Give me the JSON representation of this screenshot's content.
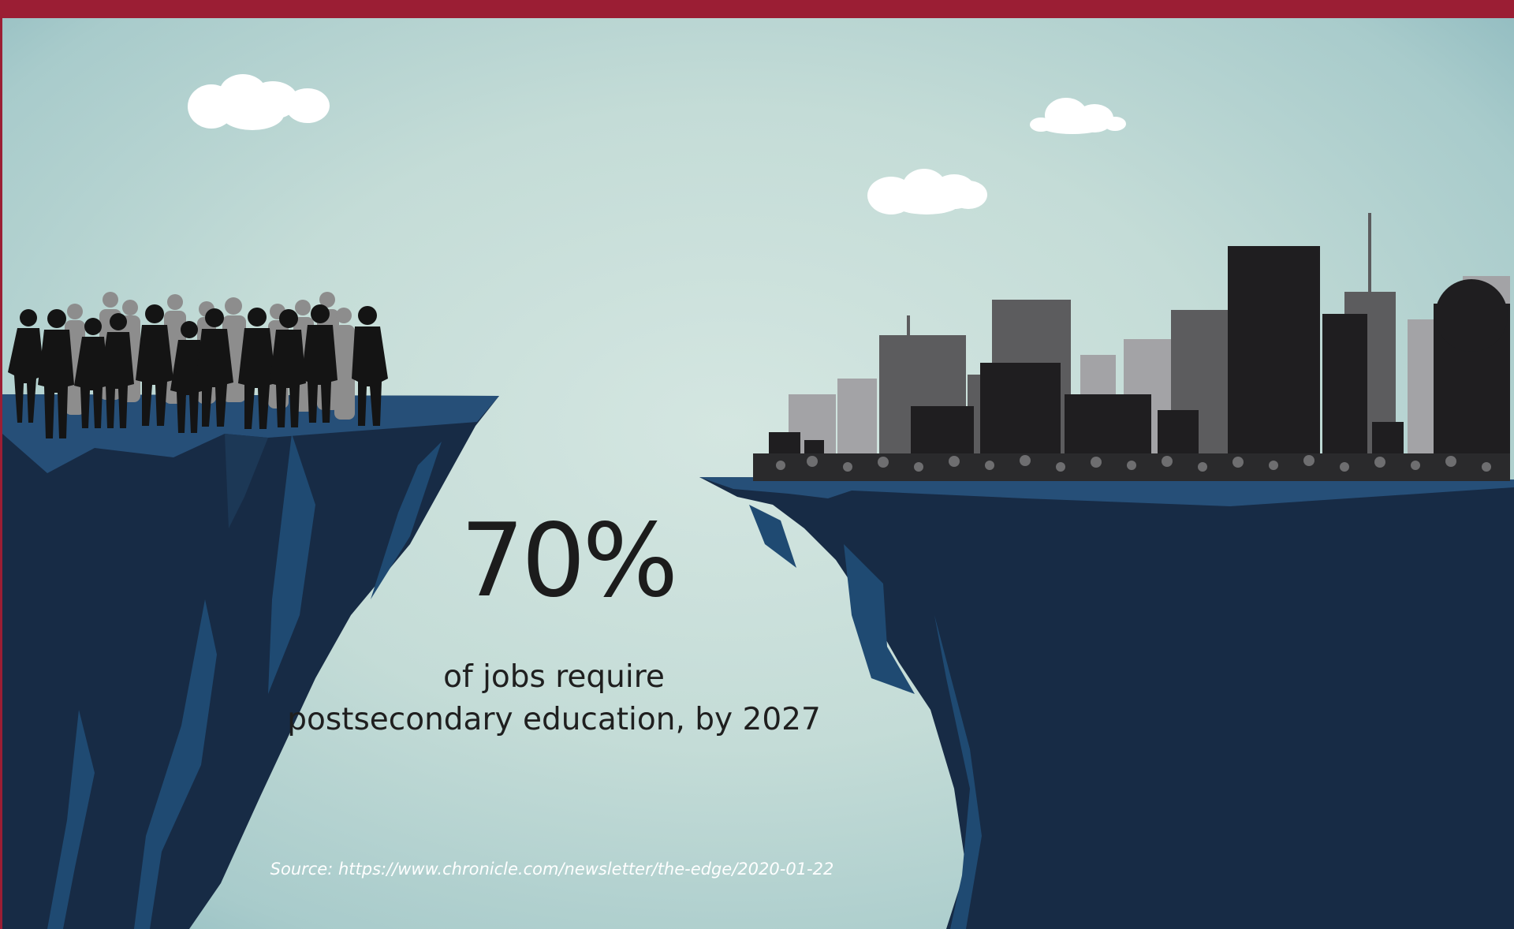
{
  "infographic": {
    "stat_value": "70%",
    "caption_line1": "of jobs require",
    "caption_line2": "postsecondary education, by 2027",
    "source": "Source: https://www.chronicle.com/newsletter/the-edge/2020-01-22"
  },
  "colors": {
    "top_bar": "#9b1e34",
    "cliff_dark": "#172b45",
    "cliff_light": "#1f4a72",
    "cliff_top": "#264f78",
    "people_front": "#141414",
    "people_back": "#8d8d8d",
    "buildings_dark": "#1f1e20",
    "buildings_mid": "#5c5c5e",
    "buildings_light": "#a3a3a6",
    "cloud": "#ffffff"
  },
  "icons": [
    "cloud-icon",
    "crowd-silhouette",
    "city-skyline-silhouette",
    "cliff-left",
    "cliff-right"
  ]
}
